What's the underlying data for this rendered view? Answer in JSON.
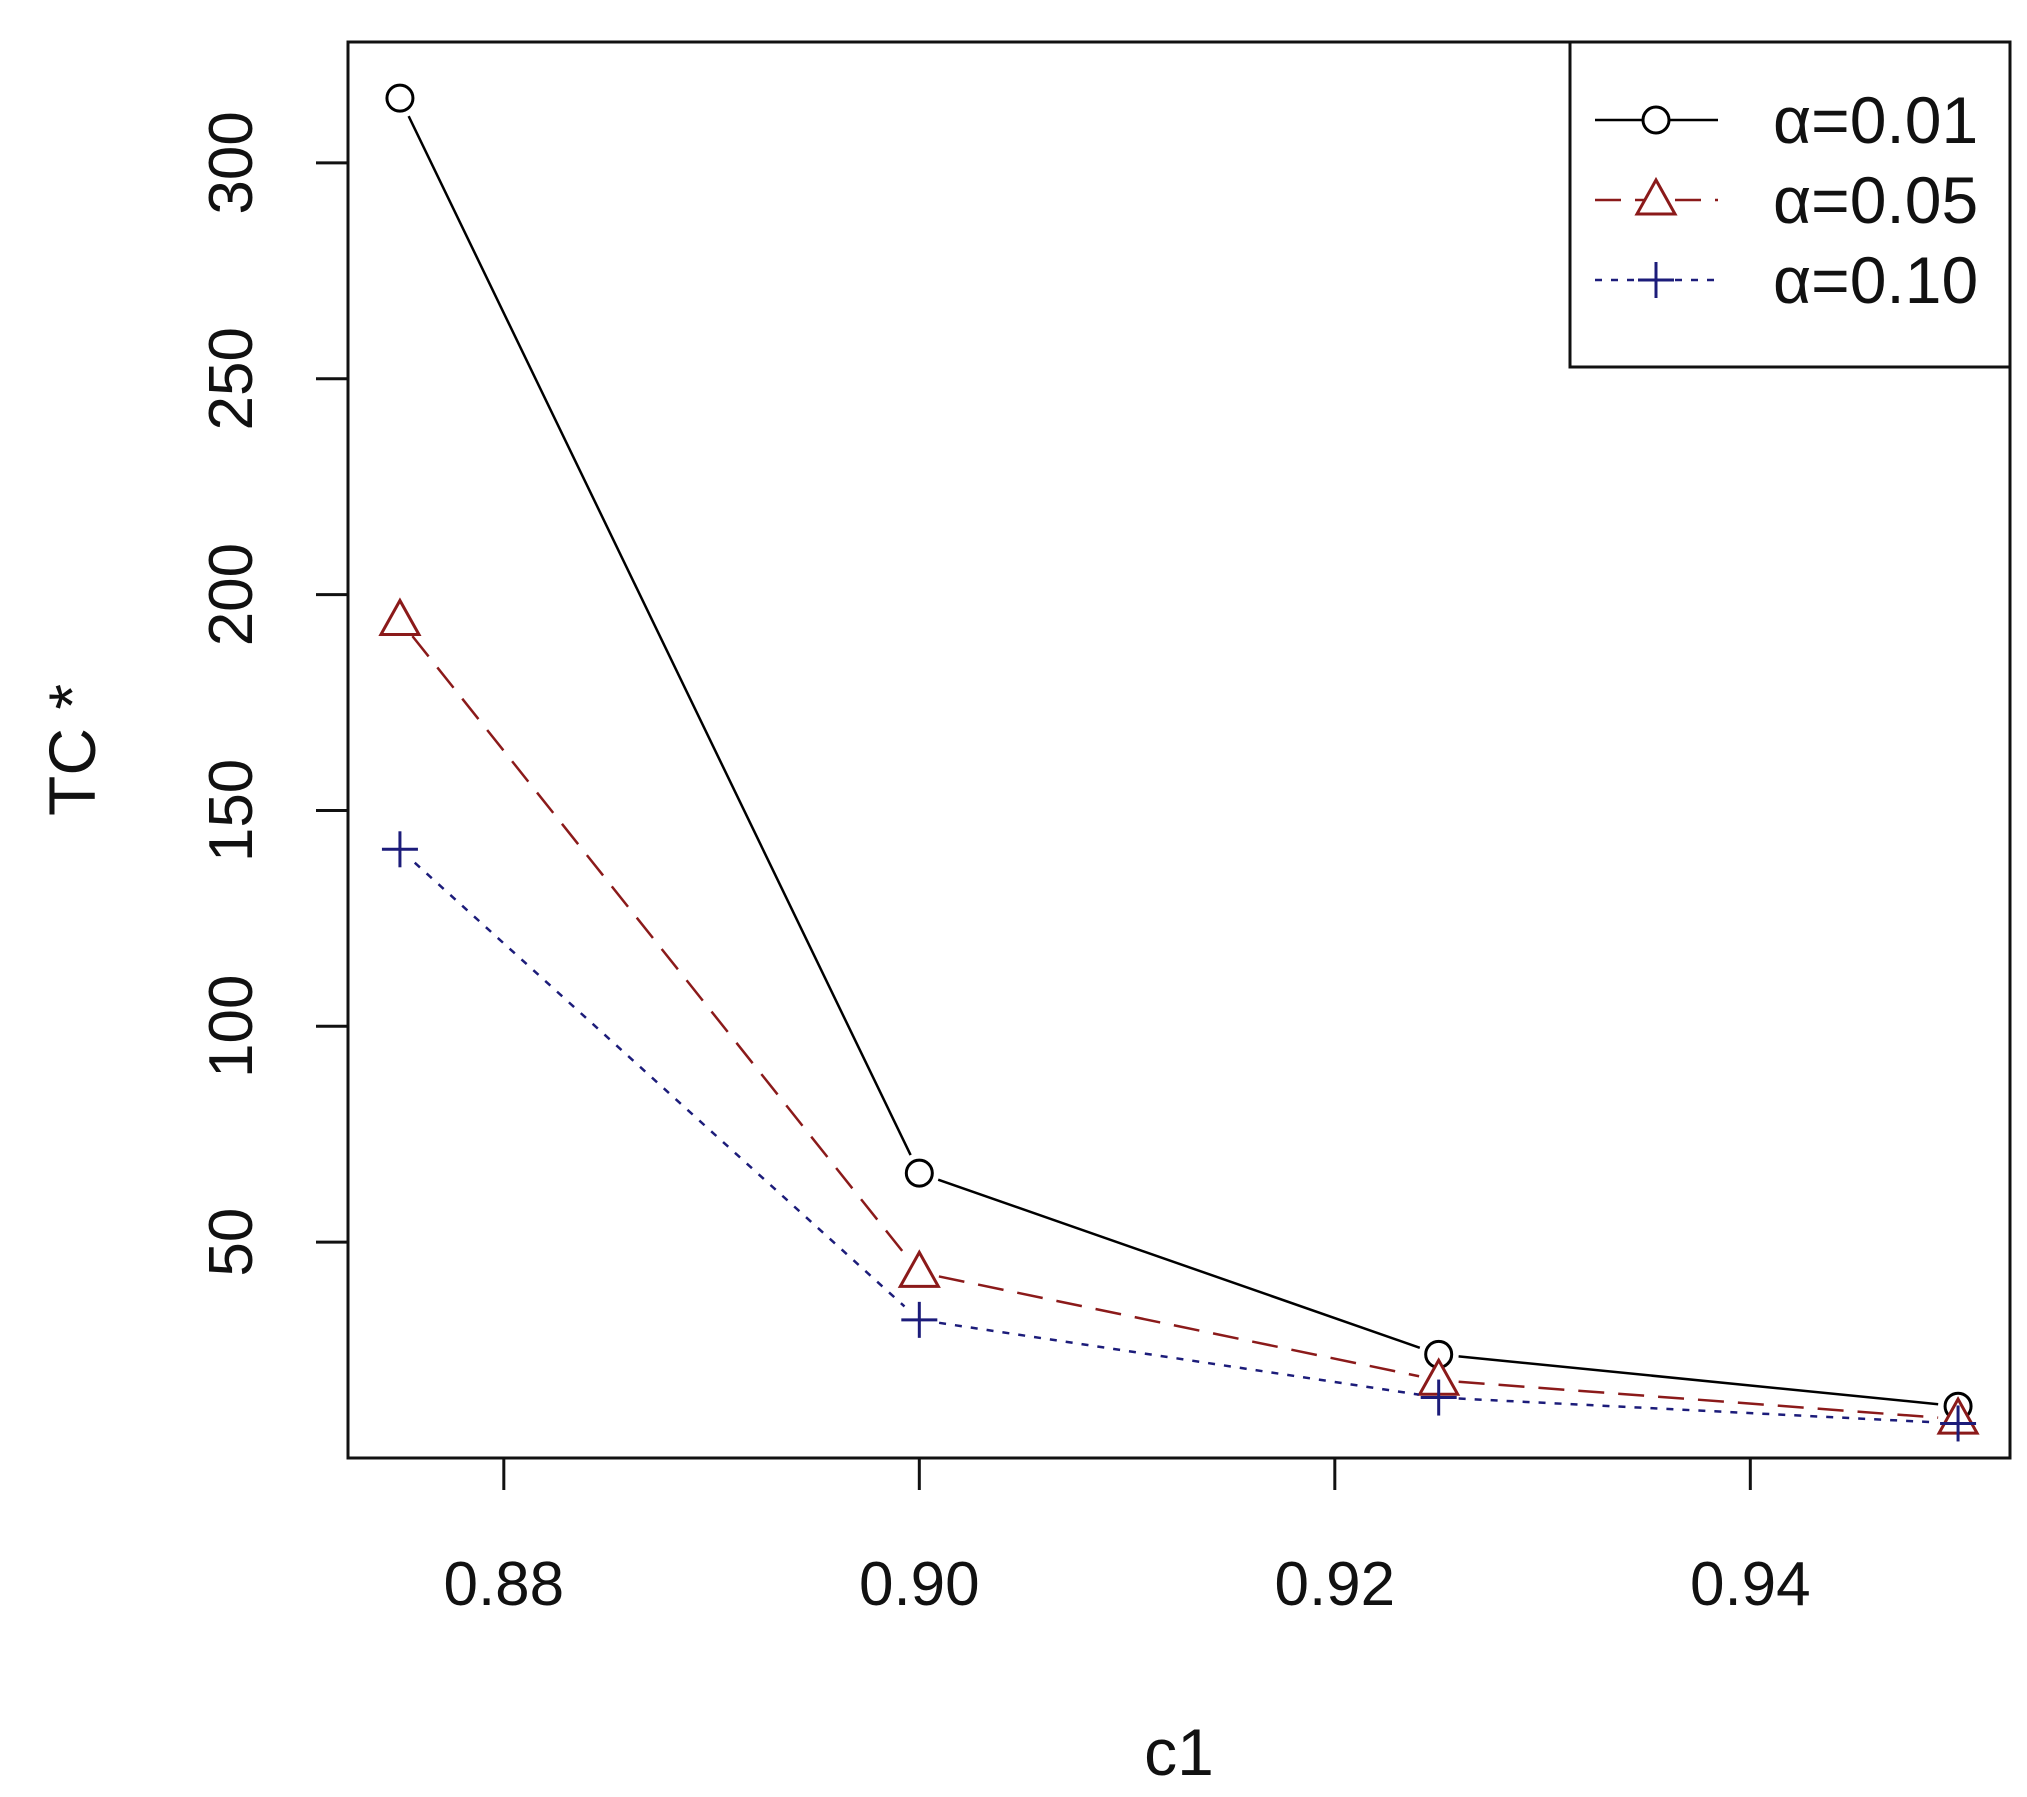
{
  "chart_data": {
    "type": "line",
    "xlabel": "c1",
    "ylabel": "TC *",
    "xlim": [
      0.8725,
      0.9525
    ],
    "ylim": [
      0,
      328
    ],
    "x_ticks": [
      "0.88",
      "0.90",
      "0.92",
      "0.94"
    ],
    "y_ticks": [
      "50",
      "100",
      "150",
      "200",
      "250",
      "300"
    ],
    "x": [
      0.875,
      0.9,
      0.925,
      0.95
    ],
    "series": [
      {
        "name": "α=0.01",
        "values": [
          315,
          66,
          24,
          12
        ],
        "color": "#000000",
        "marker": "circle",
        "dash": "solid"
      },
      {
        "name": "α=0.05",
        "values": [
          194,
          43,
          18,
          9
        ],
        "color": "#8b1a1a",
        "marker": "triangle",
        "dash": "dashed"
      },
      {
        "name": "α=0.10",
        "values": [
          141,
          32,
          14,
          8
        ],
        "color": "#1c1c7a",
        "marker": "plus",
        "dash": "dotted"
      }
    ],
    "legend_position": "top-right",
    "grid": false
  }
}
